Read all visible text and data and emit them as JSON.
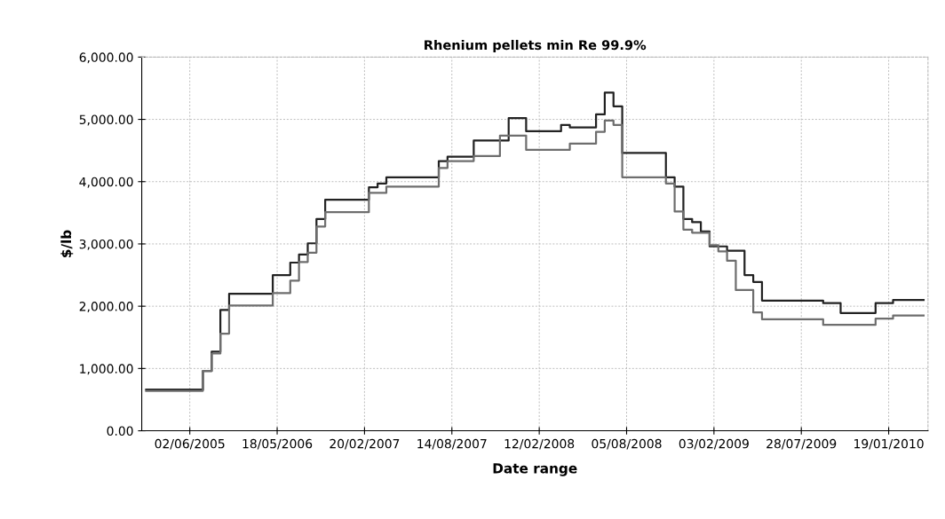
{
  "chart_data": {
    "type": "step",
    "title": "Rhenium pellets min Re 99.9%",
    "xlabel": "Date range",
    "ylabel": "$/lb",
    "categories": [
      null,
      null,
      null,
      null,
      null,
      "02/06/2005",
      null,
      null,
      null,
      null,
      null,
      null,
      null,
      null,
      null,
      "18/05/2006",
      null,
      null,
      null,
      null,
      null,
      null,
      null,
      null,
      null,
      "20/02/2007",
      null,
      null,
      null,
      null,
      null,
      null,
      null,
      null,
      null,
      "14/08/2007",
      null,
      null,
      null,
      null,
      null,
      null,
      null,
      null,
      null,
      "12/02/2008",
      null,
      null,
      null,
      null,
      null,
      null,
      null,
      null,
      null,
      "05/08/2008",
      null,
      null,
      null,
      null,
      null,
      null,
      null,
      null,
      null,
      "03/02/2009",
      null,
      null,
      null,
      null,
      null,
      null,
      null,
      null,
      null,
      "28/07/2009",
      null,
      null,
      null,
      null,
      null,
      null,
      null,
      null,
      null,
      "19/01/2010",
      null,
      null,
      null,
      null
    ],
    "ylim": [
      0,
      6000
    ],
    "yticks": [
      {
        "value": 0,
        "label": "0.00"
      },
      {
        "value": 1000,
        "label": "1,000.00"
      },
      {
        "value": 2000,
        "label": "2,000.00"
      },
      {
        "value": 3000,
        "label": "3,000.00"
      },
      {
        "value": 4000,
        "label": "4,000.00"
      },
      {
        "value": 5000,
        "label": "5,000.00"
      },
      {
        "value": 6000,
        "label": "6,000.00"
      }
    ],
    "grid": true,
    "line_style": "solid",
    "marker": "none",
    "series": [
      {
        "color": "#222222",
        "values": [
          660,
          660,
          660,
          660,
          660,
          660,
          660,
          960,
          1270,
          1940,
          2200,
          2200,
          2200,
          2200,
          2200,
          2500,
          2500,
          2700,
          2830,
          3010,
          3400,
          3710,
          3710,
          3710,
          3710,
          3710,
          3910,
          3970,
          4070,
          4070,
          4070,
          4070,
          4070,
          4070,
          4330,
          4400,
          4400,
          4400,
          4660,
          4660,
          4660,
          4660,
          5020,
          5020,
          4810,
          4810,
          4810,
          4810,
          4910,
          4870,
          4870,
          4870,
          5080,
          5430,
          5210,
          4460,
          4460,
          4460,
          4460,
          4460,
          4070,
          3920,
          3400,
          3350,
          3200,
          2960,
          2960,
          2890,
          2890,
          2500,
          2390,
          2090,
          2090,
          2090,
          2090,
          2090,
          2090,
          2090,
          2050,
          2050,
          1890,
          1890,
          1890,
          1890,
          2050,
          2050,
          2100,
          2100,
          2100,
          2100
        ]
      },
      {
        "color": "#6e6e6e",
        "values": [
          640,
          640,
          640,
          640,
          640,
          640,
          640,
          960,
          1240,
          1560,
          2010,
          2010,
          2010,
          2010,
          2010,
          2210,
          2210,
          2410,
          2710,
          2860,
          3280,
          3510,
          3510,
          3510,
          3510,
          3510,
          3820,
          3820,
          3920,
          3920,
          3920,
          3920,
          3920,
          3920,
          4220,
          4330,
          4330,
          4330,
          4410,
          4410,
          4410,
          4740,
          4740,
          4740,
          4510,
          4510,
          4510,
          4510,
          4510,
          4610,
          4610,
          4610,
          4800,
          4980,
          4910,
          4070,
          4070,
          4070,
          4070,
          4070,
          3970,
          3520,
          3230,
          3180,
          3180,
          2980,
          2880,
          2730,
          2260,
          2260,
          1900,
          1790,
          1790,
          1790,
          1790,
          1790,
          1790,
          1790,
          1700,
          1700,
          1700,
          1700,
          1700,
          1700,
          1800,
          1800,
          1850,
          1850,
          1850,
          1850
        ]
      }
    ]
  }
}
